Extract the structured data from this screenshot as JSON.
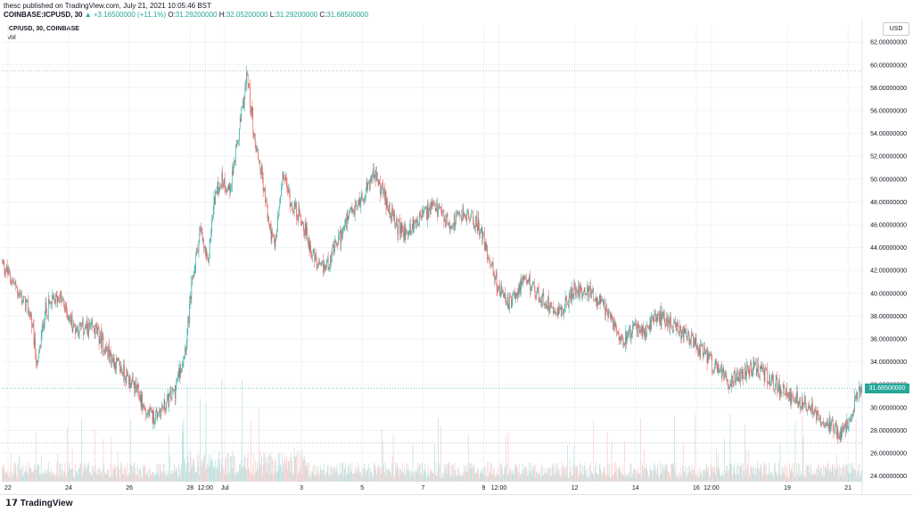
{
  "header": {
    "line1": "thesc published on TradingView.com, July 21, 2021 10:05:46 BST",
    "symbol": "COINBASE:ICPUSD, 30",
    "change_arrow": "▲",
    "change": "+3.16500000 (+11.1%)",
    "o_label": "O:",
    "o_value": "31.29200000",
    "h_label": "H:",
    "h_value": "32.05200000",
    "l_label": "L:",
    "l_value": "31.29200000",
    "c_label": "C:",
    "c_value": "31.68500000"
  },
  "legend": {
    "symbol": "ICP/USD, 30, COINBASE",
    "volume": "Vol"
  },
  "axis": {
    "currency": "USD",
    "last_price": "31.68500000"
  },
  "footer": {
    "logo_mark": "𝟭𝟳",
    "logo_text": "TradingView"
  },
  "colors": {
    "up": "#26a69a",
    "down": "#ef5350",
    "up_vol": "#b2dfdb",
    "down_vol": "#f8c9c8",
    "grid": "#f0f3fa"
  },
  "chart_data": {
    "type": "candlestick",
    "timeframe": "30",
    "ylim": [
      23.5,
      63.5
    ],
    "y_ticks": [
      {
        "value": 24,
        "label": "24.00000000"
      },
      {
        "value": 26,
        "label": "26.00000000"
      },
      {
        "value": 28,
        "label": "28.00000000"
      },
      {
        "value": 30,
        "label": "30.00000000"
      },
      {
        "value": 32,
        "label": "32.00000000"
      },
      {
        "value": 34,
        "label": "34.00000000"
      },
      {
        "value": 36,
        "label": "36.00000000"
      },
      {
        "value": 38,
        "label": "38.00000000"
      },
      {
        "value": 40,
        "label": "40.00000000"
      },
      {
        "value": 42,
        "label": "42.00000000"
      },
      {
        "value": 44,
        "label": "44.00000000"
      },
      {
        "value": 46,
        "label": "46.00000000"
      },
      {
        "value": 48,
        "label": "48.00000000"
      },
      {
        "value": 50,
        "label": "50.00000000"
      },
      {
        "value": 52,
        "label": "52.00000000"
      },
      {
        "value": 54,
        "label": "54.00000000"
      },
      {
        "value": 56,
        "label": "56.00000000"
      },
      {
        "value": 58,
        "label": "58.00000000"
      },
      {
        "value": 60,
        "label": "60.00000000"
      },
      {
        "value": 62,
        "label": "62.00000000"
      }
    ],
    "x_ticks": [
      {
        "label": "22",
        "bar": 8
      },
      {
        "label": "24",
        "bar": 92
      },
      {
        "label": "26",
        "bar": 176
      },
      {
        "label": "28",
        "bar": 260
      },
      {
        "label": "12:00",
        "bar": 281
      },
      {
        "label": "Jul",
        "bar": 308
      },
      {
        "label": "3",
        "bar": 414
      },
      {
        "label": "5",
        "bar": 498
      },
      {
        "label": "7",
        "bar": 582
      },
      {
        "label": "9",
        "bar": 666
      },
      {
        "label": "12:00",
        "bar": 687
      },
      {
        "label": "12",
        "bar": 792
      },
      {
        "label": "14",
        "bar": 876
      },
      {
        "label": "16",
        "bar": 960
      },
      {
        "label": "12:00",
        "bar": 981
      },
      {
        "label": "19",
        "bar": 1086
      },
      {
        "label": "21",
        "bar": 1170
      }
    ],
    "bar_count": 1190,
    "high_line": 59.5,
    "low_line": 26.9,
    "last_price": 31.685,
    "last_candle": {
      "open": 31.292,
      "high": 32.052,
      "low": 31.292,
      "close": 31.685
    },
    "change": 3.165,
    "change_pct": 11.1,
    "anchors": [
      [
        0,
        42.8
      ],
      [
        40,
        38.2
      ],
      [
        50,
        33.5
      ],
      [
        60,
        38.5
      ],
      [
        80,
        39.8
      ],
      [
        100,
        37.0
      ],
      [
        130,
        36.8
      ],
      [
        150,
        34.5
      ],
      [
        170,
        33.0
      ],
      [
        190,
        31.2
      ],
      [
        200,
        29.5
      ],
      [
        210,
        29.2
      ],
      [
        225,
        30.1
      ],
      [
        240,
        31.5
      ],
      [
        255,
        35.5
      ],
      [
        265,
        41.5
      ],
      [
        275,
        45.5
      ],
      [
        285,
        42.5
      ],
      [
        295,
        48.5
      ],
      [
        305,
        50.0
      ],
      [
        315,
        49.0
      ],
      [
        325,
        52.5
      ],
      [
        335,
        56.8
      ],
      [
        340,
        59.2
      ],
      [
        350,
        53.5
      ],
      [
        360,
        50.5
      ],
      [
        370,
        46.0
      ],
      [
        378,
        44.0
      ],
      [
        390,
        50.5
      ],
      [
        400,
        48.0
      ],
      [
        415,
        46.5
      ],
      [
        430,
        43.5
      ],
      [
        440,
        42.0
      ],
      [
        450,
        42.5
      ],
      [
        465,
        44.5
      ],
      [
        480,
        46.5
      ],
      [
        500,
        48.5
      ],
      [
        515,
        50.5
      ],
      [
        530,
        48.5
      ],
      [
        545,
        46.0
      ],
      [
        560,
        45.2
      ],
      [
        580,
        46.8
      ],
      [
        600,
        47.5
      ],
      [
        620,
        46.0
      ],
      [
        640,
        47.0
      ],
      [
        660,
        46.0
      ],
      [
        675,
        43.0
      ],
      [
        690,
        40.0
      ],
      [
        705,
        39.0
      ],
      [
        715,
        40.5
      ],
      [
        730,
        41.0
      ],
      [
        745,
        39.5
      ],
      [
        760,
        39.0
      ],
      [
        775,
        38.5
      ],
      [
        795,
        40.5
      ],
      [
        815,
        40.0
      ],
      [
        830,
        39.0
      ],
      [
        845,
        37.5
      ],
      [
        860,
        36.0
      ],
      [
        875,
        37.0
      ],
      [
        890,
        36.5
      ],
      [
        905,
        38.0
      ],
      [
        925,
        37.5
      ],
      [
        940,
        36.5
      ],
      [
        960,
        35.5
      ],
      [
        980,
        34.0
      ],
      [
        995,
        33.0
      ],
      [
        1005,
        32.2
      ],
      [
        1015,
        32.8
      ],
      [
        1025,
        33.0
      ],
      [
        1040,
        33.5
      ],
      [
        1055,
        33.0
      ],
      [
        1075,
        31.8
      ],
      [
        1090,
        31.0
      ],
      [
        1105,
        30.5
      ],
      [
        1120,
        30.0
      ],
      [
        1135,
        29.0
      ],
      [
        1150,
        28.3
      ],
      [
        1160,
        27.5
      ],
      [
        1172,
        28.5
      ],
      [
        1180,
        30.5
      ],
      [
        1189,
        31.685
      ]
    ]
  }
}
